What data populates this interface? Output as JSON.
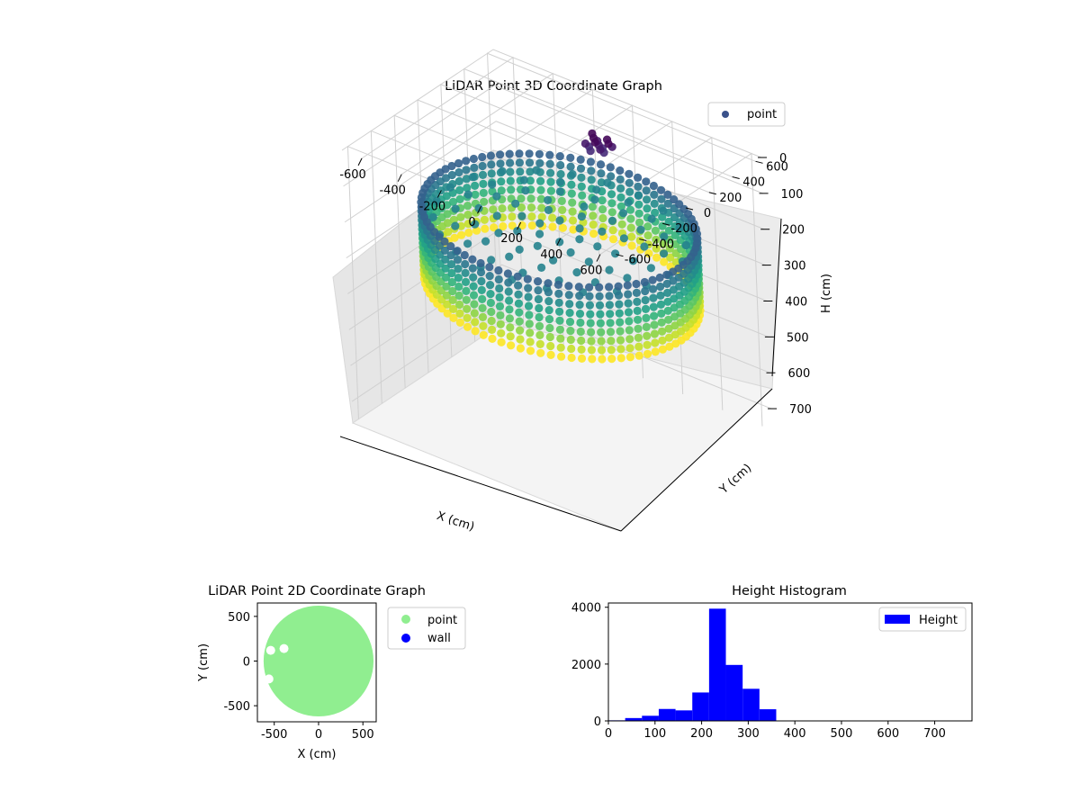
{
  "chart_data": [
    {
      "type": "scatter",
      "title": "LiDAR Point 3D Coordinate Graph",
      "xlabel": "X (cm)",
      "ylabel": "Y (cm)",
      "zlabel": "H (cm)",
      "xlim": [
        -700,
        650
      ],
      "ylim": [
        -650,
        650
      ],
      "zlim": [
        0,
        760
      ],
      "z_inverted": true,
      "x_ticks": [
        -600,
        -400,
        -200,
        0,
        200,
        400,
        600
      ],
      "y_ticks": [
        -600,
        -400,
        -200,
        0,
        200,
        400,
        600
      ],
      "z_ticks": [
        0,
        100,
        200,
        300,
        400,
        500,
        600,
        700
      ],
      "legend": {
        "entries": [
          "point"
        ],
        "placement": "top-right"
      },
      "colormap": "viridis",
      "series": [
        {
          "name": "point",
          "ring_radius": 600,
          "height_range": [
            180,
            380
          ],
          "cluster": {
            "x": -150,
            "y": 550,
            "h": [
              90,
              120
            ]
          }
        }
      ]
    },
    {
      "type": "scatter",
      "title": "LiDAR Point 2D Coordinate Graph",
      "xlabel": "X (cm)",
      "ylabel": "Y (cm)",
      "xlim": [
        -690,
        650
      ],
      "ylim": [
        -680,
        650
      ],
      "x_ticks": [
        -500,
        0,
        500
      ],
      "y_ticks": [
        -500,
        0,
        500
      ],
      "legend": {
        "entries": [
          "point",
          "wall"
        ],
        "placement": "outside-right"
      },
      "series": [
        {
          "name": "point",
          "color": "#90ee90",
          "shape": "disk",
          "radius": 620
        },
        {
          "name": "wall",
          "color": "#0000ff",
          "values": []
        }
      ],
      "holes": [
        {
          "x": -540,
          "y": 120
        },
        {
          "x": -560,
          "y": -200
        },
        {
          "x": -390,
          "y": 140
        }
      ]
    },
    {
      "type": "bar",
      "title": "Height Histogram",
      "xlabel": "",
      "ylabel": "",
      "xlim": [
        0,
        780
      ],
      "ylim": [
        0,
        4150
      ],
      "x_ticks": [
        0,
        100,
        200,
        300,
        400,
        500,
        600,
        700
      ],
      "y_ticks": [
        0,
        2000,
        4000
      ],
      "color": "#0000ff",
      "legend": {
        "entries": [
          "Height"
        ],
        "placement": "top-right"
      },
      "bins": [
        {
          "x0": 0,
          "x1": 36,
          "count": 20
        },
        {
          "x0": 36,
          "x1": 72,
          "count": 100
        },
        {
          "x0": 72,
          "x1": 108,
          "count": 180
        },
        {
          "x0": 108,
          "x1": 144,
          "count": 420
        },
        {
          "x0": 144,
          "x1": 180,
          "count": 370
        },
        {
          "x0": 180,
          "x1": 216,
          "count": 1000
        },
        {
          "x0": 216,
          "x1": 252,
          "count": 3950
        },
        {
          "x0": 252,
          "x1": 288,
          "count": 1970
        },
        {
          "x0": 288,
          "x1": 324,
          "count": 1130
        },
        {
          "x0": 324,
          "x1": 360,
          "count": 410
        }
      ]
    }
  ]
}
